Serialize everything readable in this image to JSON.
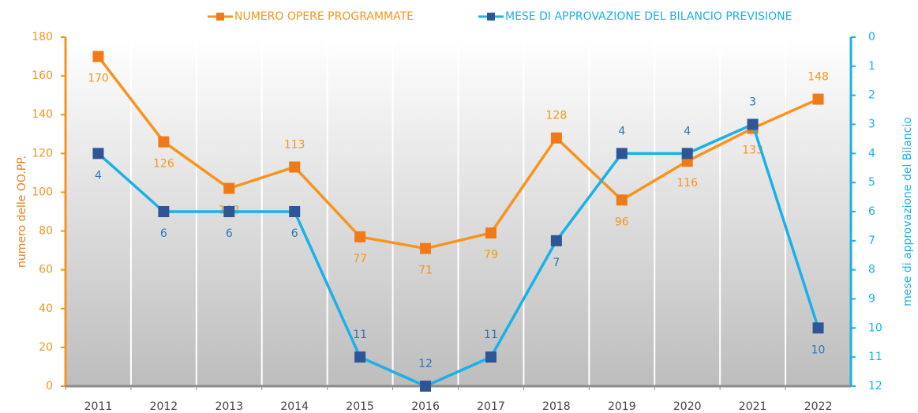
{
  "chart_data": {
    "type": "line",
    "categories": [
      "2011",
      "2012",
      "2013",
      "2014",
      "2015",
      "2016",
      "2017",
      "2018",
      "2019",
      "2020",
      "2021",
      "2022"
    ],
    "series": [
      {
        "name": "NUMERO OPERE PROGRAMMATE",
        "color": "#f7941d",
        "marker_color": "#f07a1a",
        "values": [
          170,
          126,
          102,
          113,
          77,
          71,
          79,
          128,
          96,
          116,
          133,
          148
        ]
      },
      {
        "name": "MESE DI APPROVAZIONE DEL BILANCIO PREVISIONE",
        "color": "#1ab0e8",
        "marker_color": "#2f5597",
        "axis": "y2",
        "values": [
          4,
          6,
          6,
          6,
          11,
          12,
          11,
          7,
          4,
          4,
          3,
          10
        ]
      }
    ],
    "ylabel": "numero delle OO.PP.",
    "y2label": "mese di approvazione del Bilancio",
    "ylim": [
      0,
      180
    ],
    "yticks": [
      0,
      20,
      40,
      60,
      80,
      100,
      120,
      140,
      160,
      180
    ],
    "y2lim": [
      12,
      0
    ],
    "y2ticks": [
      0,
      1,
      2,
      3,
      4,
      5,
      6,
      7,
      8,
      9,
      10,
      11,
      12
    ],
    "legend": "top"
  }
}
